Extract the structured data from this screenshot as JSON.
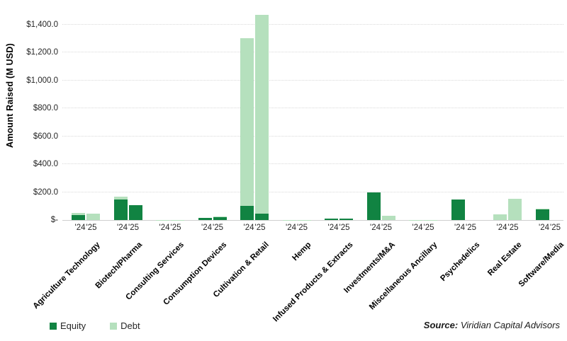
{
  "chart_data": {
    "type": "bar",
    "stacked": true,
    "title": "",
    "xlabel": "",
    "ylabel": "Amount Raised (M USD)",
    "ylim": [
      0,
      1520
    ],
    "grid": "horizontal-dotted",
    "legend_position": "bottom-left",
    "units": "M USD",
    "yticks": [
      {
        "value": 0,
        "label": "$-"
      },
      {
        "value": 200,
        "label": "$200.0"
      },
      {
        "value": 400,
        "label": "$400.0"
      },
      {
        "value": 600,
        "label": "$600.0"
      },
      {
        "value": 800,
        "label": "$800.0"
      },
      {
        "value": 1000,
        "label": "$1,000.0"
      },
      {
        "value": 1200,
        "label": "$1,200.0"
      },
      {
        "value": 1400,
        "label": "$1,400.0"
      }
    ],
    "legend": [
      {
        "name": "Equity",
        "color": "#118342"
      },
      {
        "name": "Debt",
        "color": "#b5e0bd"
      }
    ],
    "bar_years": [
      "'24",
      "'25"
    ],
    "categories": [
      {
        "name": "Agriculture Technology",
        "bars": [
          {
            "year": "'24",
            "equity": 35,
            "debt": 14
          },
          {
            "year": "'25",
            "equity": 0,
            "debt": 45
          }
        ]
      },
      {
        "name": "Biotech/Pharma",
        "bars": [
          {
            "year": "'24",
            "equity": 145,
            "debt": 20
          },
          {
            "year": "'25",
            "equity": 105,
            "debt": 0
          }
        ]
      },
      {
        "name": "Consulting Services",
        "bars": [
          {
            "year": "'24",
            "equity": 0,
            "debt": 1
          },
          {
            "year": "'25",
            "equity": 0,
            "debt": 1
          }
        ]
      },
      {
        "name": "Consumption Devices",
        "bars": [
          {
            "year": "'24",
            "equity": 15,
            "debt": 2
          },
          {
            "year": "'25",
            "equity": 22,
            "debt": 3
          }
        ]
      },
      {
        "name": "Cultivation & Retail",
        "bars": [
          {
            "year": "'24",
            "equity": 100,
            "debt": 1200
          },
          {
            "year": "'25",
            "equity": 45,
            "debt": 1425
          }
        ]
      },
      {
        "name": "Hemp",
        "bars": [
          {
            "year": "'24",
            "equity": 0,
            "debt": 2
          },
          {
            "year": "'25",
            "equity": 0,
            "debt": 2
          }
        ]
      },
      {
        "name": "Infused Products & Extracts",
        "bars": [
          {
            "year": "'24",
            "equity": 9,
            "debt": 3
          },
          {
            "year": "'25",
            "equity": 9,
            "debt": 3
          }
        ]
      },
      {
        "name": "Investments/M&A",
        "bars": [
          {
            "year": "'24",
            "equity": 196,
            "debt": 4
          },
          {
            "year": "'25",
            "equity": 0,
            "debt": 30
          }
        ]
      },
      {
        "name": "Miscellaneous Ancillary",
        "bars": [
          {
            "year": "'24",
            "equity": 0,
            "debt": 1
          },
          {
            "year": "'25",
            "equity": 0,
            "debt": 1
          }
        ]
      },
      {
        "name": "Psychedelics",
        "bars": [
          {
            "year": "'24",
            "equity": 145,
            "debt": 0
          },
          {
            "year": "'25",
            "equity": 0,
            "debt": 0
          }
        ]
      },
      {
        "name": "Real Estate",
        "bars": [
          {
            "year": "'24",
            "equity": 0,
            "debt": 42
          },
          {
            "year": "'25",
            "equity": 0,
            "debt": 152
          }
        ]
      },
      {
        "name": "Software/Media",
        "bars": [
          {
            "year": "'24",
            "equity": 76,
            "debt": 4
          },
          {
            "year": "'25",
            "equity": 0,
            "debt": 0
          }
        ]
      }
    ],
    "source_prefix": "Source:",
    "source_text": " Viridian Capital Advisors"
  }
}
